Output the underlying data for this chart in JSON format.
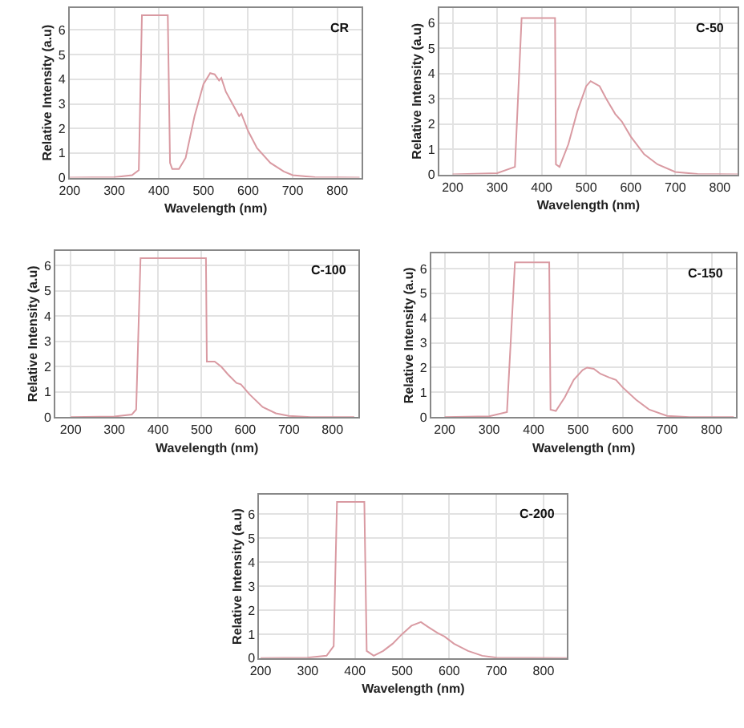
{
  "chart_data": [
    {
      "type": "line",
      "xlabel": "Wavelength (nm)",
      "ylabel": "Relative Intensity (a.u)",
      "annotations": [
        "CR"
      ],
      "xlim": [
        200,
        855
      ],
      "ylim": [
        0,
        6.9
      ],
      "xticks": [
        200,
        300,
        400,
        500,
        600,
        700,
        800
      ],
      "yticks": [
        0,
        1,
        2,
        3,
        4,
        5,
        6
      ],
      "grid": true,
      "x": [
        200,
        300,
        340,
        355,
        362,
        420,
        425,
        430,
        445,
        460,
        480,
        500,
        515,
        525,
        535,
        540,
        550,
        565,
        580,
        585,
        600,
        620,
        650,
        680,
        700,
        750,
        850
      ],
      "series": [
        {
          "color": "#d99aa2",
          "values": [
            0,
            0.02,
            0.1,
            0.3,
            6.6,
            6.6,
            0.6,
            0.35,
            0.35,
            0.8,
            2.5,
            3.8,
            4.25,
            4.2,
            3.95,
            4.05,
            3.5,
            3.0,
            2.5,
            2.6,
            1.9,
            1.2,
            0.6,
            0.25,
            0.1,
            0.02,
            0
          ]
        }
      ]
    },
    {
      "type": "line",
      "xlabel": "Wavelength (nm)",
      "ylabel": "Relative Intensity (a.u)",
      "annotations": [
        "C-50"
      ],
      "xlim": [
        170,
        840
      ],
      "ylim": [
        0,
        6.6
      ],
      "xticks": [
        200,
        300,
        400,
        500,
        600,
        700,
        800
      ],
      "yticks": [
        0,
        1,
        2,
        3,
        4,
        5,
        6
      ],
      "grid": true,
      "x": [
        200,
        300,
        340,
        355,
        430,
        432,
        440,
        460,
        480,
        500,
        510,
        520,
        530,
        545,
        565,
        580,
        600,
        630,
        660,
        700,
        750,
        840
      ],
      "series": [
        {
          "color": "#d99aa2",
          "values": [
            0,
            0.05,
            0.3,
            6.2,
            6.2,
            0.4,
            0.3,
            1.2,
            2.5,
            3.5,
            3.7,
            3.6,
            3.5,
            3.0,
            2.4,
            2.1,
            1.5,
            0.8,
            0.4,
            0.1,
            0.02,
            0
          ]
        }
      ]
    },
    {
      "type": "line",
      "xlabel": "Wavelength (nm)",
      "ylabel": "Relative Intensity (a.u)",
      "annotations": [
        "C-100"
      ],
      "xlim": [
        165,
        860
      ],
      "ylim": [
        0,
        6.6
      ],
      "xticks": [
        200,
        300,
        400,
        500,
        600,
        700,
        800
      ],
      "yticks": [
        0,
        1,
        2,
        3,
        4,
        5,
        6
      ],
      "grid": true,
      "x": [
        200,
        300,
        340,
        350,
        360,
        510,
        512,
        530,
        545,
        560,
        580,
        590,
        610,
        640,
        670,
        700,
        750,
        850
      ],
      "series": [
        {
          "color": "#d99aa2",
          "values": [
            0,
            0.02,
            0.1,
            0.3,
            6.3,
            6.3,
            2.2,
            2.2,
            2.0,
            1.7,
            1.35,
            1.3,
            0.9,
            0.4,
            0.15,
            0.05,
            0,
            0
          ]
        }
      ]
    },
    {
      "type": "line",
      "xlabel": "Wavelength (nm)",
      "ylabel": "Relative Intensity (a.u)",
      "annotations": [
        "C-150"
      ],
      "xlim": [
        170,
        855
      ],
      "ylim": [
        0,
        6.6
      ],
      "xticks": [
        200,
        300,
        400,
        500,
        600,
        700,
        800
      ],
      "yticks": [
        0,
        1,
        2,
        3,
        4,
        5,
        6
      ],
      "grid": true,
      "x": [
        200,
        300,
        340,
        358,
        435,
        438,
        450,
        470,
        490,
        510,
        520,
        535,
        550,
        570,
        585,
        600,
        630,
        660,
        700,
        750,
        850
      ],
      "series": [
        {
          "color": "#d99aa2",
          "values": [
            0,
            0.03,
            0.2,
            6.25,
            6.25,
            0.3,
            0.25,
            0.8,
            1.5,
            1.9,
            2.0,
            1.95,
            1.75,
            1.6,
            1.5,
            1.2,
            0.7,
            0.3,
            0.05,
            0,
            0
          ]
        }
      ]
    },
    {
      "type": "line",
      "xlabel": "Wavelength (nm)",
      "ylabel": "Relative Intensity (a.u)",
      "annotations": [
        "C-200"
      ],
      "xlim": [
        197,
        850
      ],
      "ylim": [
        0,
        6.8
      ],
      "xticks": [
        200,
        300,
        400,
        500,
        600,
        700,
        800
      ],
      "yticks": [
        0,
        1,
        2,
        3,
        4,
        5,
        6
      ],
      "grid": true,
      "x": [
        200,
        300,
        340,
        355,
        362,
        420,
        425,
        440,
        460,
        480,
        500,
        520,
        540,
        555,
        575,
        590,
        610,
        640,
        670,
        700,
        850
      ],
      "series": [
        {
          "color": "#d99aa2",
          "values": [
            0,
            0.02,
            0.1,
            0.5,
            6.5,
            6.5,
            0.3,
            0.1,
            0.3,
            0.6,
            1.0,
            1.35,
            1.5,
            1.3,
            1.05,
            0.9,
            0.6,
            0.3,
            0.1,
            0.02,
            0
          ]
        }
      ]
    }
  ]
}
